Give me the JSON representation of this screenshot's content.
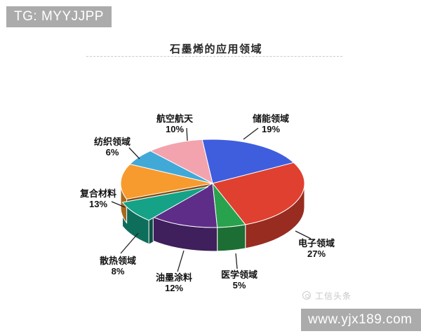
{
  "banner": {
    "text": "TG: MYYJJPP",
    "bg_color": "#ababab"
  },
  "header": {
    "title": "石墨烯的应用领域"
  },
  "chart_data": {
    "type": "pie",
    "style": "3d",
    "title": "石墨烯的应用领域",
    "unit": "%",
    "direction": "clockwise",
    "start_angle_deg": -6.5,
    "categories": [
      "储能领域",
      "电子领域",
      "医学领域",
      "油墨涂料",
      "散热领域",
      "复合材料",
      "纺织领域",
      "航空航天"
    ],
    "values": [
      19,
      27,
      5,
      12,
      8,
      13,
      6,
      10
    ],
    "slices": [
      {
        "label": "储能领域",
        "pct": 19,
        "color": "#3f5ede",
        "exploded": false
      },
      {
        "label": "电子领域",
        "pct": 27,
        "color": "#e0402f",
        "exploded": false
      },
      {
        "label": "医学领域",
        "pct": 5,
        "color": "#29a24d",
        "exploded": false
      },
      {
        "label": "油墨涂料",
        "pct": 12,
        "color": "#5d2d87",
        "exploded": false
      },
      {
        "label": "散热领域",
        "pct": 8,
        "color": "#15a287",
        "exploded": true
      },
      {
        "label": "复合材料",
        "pct": 13,
        "color": "#f79b2e",
        "exploded": false
      },
      {
        "label": "纺织领域",
        "pct": 6,
        "color": "#41a9d8",
        "exploded": false
      },
      {
        "label": "航空航天",
        "pct": 10,
        "color": "#f3a3ae",
        "exploded": false
      }
    ],
    "legend": "none",
    "labels_shown_as": "callouts with percent"
  },
  "logo": {
    "text": "工信头条",
    "icon": "circle-logo-icon",
    "color": "#c6c6c6"
  },
  "watermark": {
    "text": "www.yjx189.com",
    "bg_color": "#ababab"
  }
}
